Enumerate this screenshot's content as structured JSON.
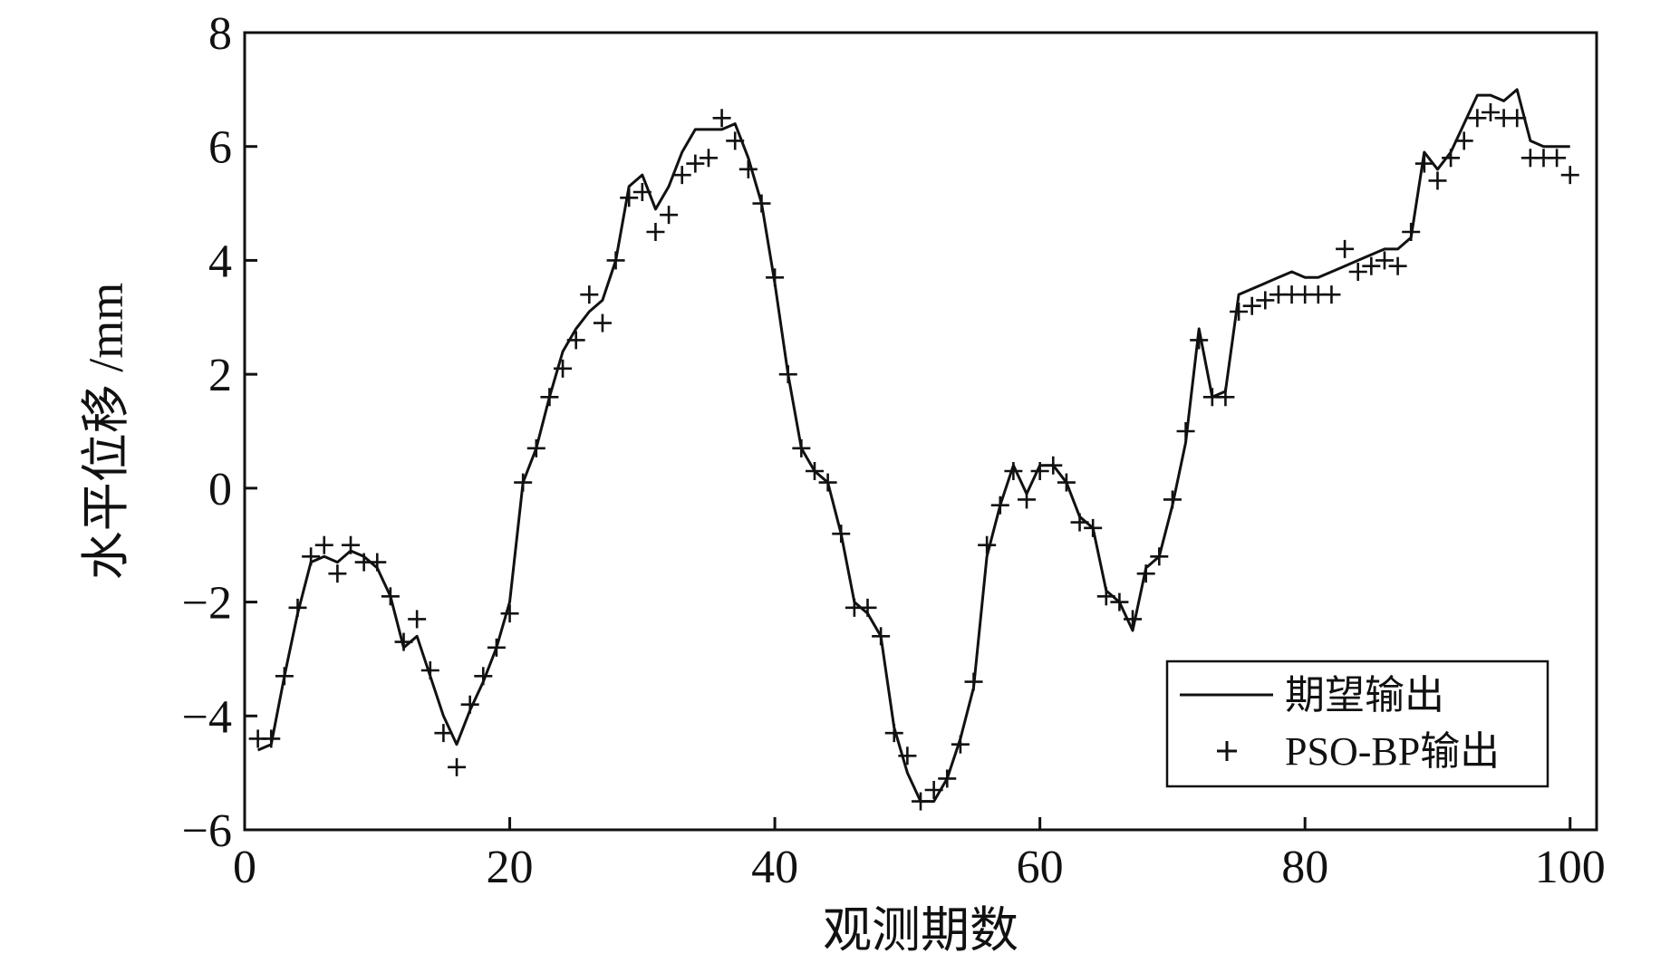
{
  "chart_data": {
    "type": "line",
    "xlabel": "观测期数",
    "ylabel": "水平位移 /mm",
    "xlim": [
      0,
      102
    ],
    "ylim": [
      -6,
      8
    ],
    "xticks": [
      0,
      20,
      40,
      60,
      80,
      100
    ],
    "yticks": [
      -6,
      -4,
      -2,
      0,
      2,
      4,
      6,
      8
    ],
    "xtick_labels": [
      "0",
      "20",
      "40",
      "60",
      "80",
      "100"
    ],
    "ytick_labels": [
      "−6",
      "−4",
      "−2",
      "0",
      "2",
      "4",
      "6",
      "8"
    ],
    "grid": false,
    "legend_position": "bottom-right",
    "series": [
      {
        "name": "期望输出",
        "style": "line",
        "color": "#111111",
        "x": [
          1,
          2,
          3,
          4,
          5,
          6,
          7,
          8,
          9,
          10,
          11,
          12,
          13,
          14,
          15,
          16,
          17,
          18,
          19,
          20,
          21,
          22,
          23,
          24,
          25,
          26,
          27,
          28,
          29,
          30,
          31,
          32,
          33,
          34,
          35,
          36,
          37,
          38,
          39,
          40,
          41,
          42,
          43,
          44,
          45,
          46,
          47,
          48,
          49,
          50,
          51,
          52,
          53,
          54,
          55,
          56,
          57,
          58,
          59,
          60,
          61,
          62,
          63,
          64,
          65,
          66,
          67,
          68,
          69,
          70,
          71,
          72,
          73,
          74,
          75,
          76,
          77,
          78,
          79,
          80,
          81,
          82,
          83,
          84,
          85,
          86,
          87,
          88,
          89,
          90,
          91,
          92,
          93,
          94,
          95,
          96,
          97,
          98,
          99,
          100
        ],
        "y": [
          -4.6,
          -4.5,
          -3.3,
          -2.2,
          -1.3,
          -1.2,
          -1.3,
          -1.1,
          -1.2,
          -1.4,
          -1.9,
          -2.8,
          -2.6,
          -3.3,
          -4.0,
          -4.5,
          -3.9,
          -3.4,
          -2.8,
          -2.0,
          0.1,
          0.7,
          1.6,
          2.4,
          2.8,
          3.1,
          3.3,
          4.0,
          5.3,
          5.5,
          4.9,
          5.3,
          5.9,
          6.3,
          6.3,
          6.3,
          6.4,
          5.8,
          5.0,
          3.6,
          2.0,
          0.7,
          0.3,
          0.1,
          -0.8,
          -2.0,
          -2.2,
          -2.6,
          -4.2,
          -5.0,
          -5.5,
          -5.5,
          -5.1,
          -4.4,
          -3.5,
          -1.2,
          -0.3,
          0.4,
          -0.1,
          0.4,
          0.4,
          0.1,
          -0.5,
          -0.7,
          -1.8,
          -2.0,
          -2.5,
          -1.4,
          -1.2,
          -0.3,
          0.8,
          2.8,
          1.6,
          1.7,
          3.4,
          3.5,
          3.6,
          3.7,
          3.8,
          3.7,
          3.7,
          3.8,
          3.9,
          4.0,
          4.1,
          4.2,
          4.2,
          4.4,
          5.9,
          5.6,
          5.9,
          6.4,
          6.9,
          6.9,
          6.8,
          7.0,
          6.1,
          6.0,
          6.0,
          6.0
        ]
      },
      {
        "name": "PSO-BP输出",
        "style": "marker",
        "marker": "+",
        "color": "#111111",
        "x": [
          1,
          2,
          3,
          4,
          5,
          6,
          7,
          8,
          9,
          10,
          11,
          12,
          13,
          14,
          15,
          16,
          17,
          18,
          19,
          20,
          21,
          22,
          23,
          24,
          25,
          26,
          27,
          28,
          29,
          30,
          31,
          32,
          33,
          34,
          35,
          36,
          37,
          38,
          39,
          40,
          41,
          42,
          43,
          44,
          45,
          46,
          47,
          48,
          49,
          50,
          51,
          52,
          53,
          54,
          55,
          56,
          57,
          58,
          59,
          60,
          61,
          62,
          63,
          64,
          65,
          66,
          67,
          68,
          69,
          70,
          71,
          72,
          73,
          74,
          75,
          76,
          77,
          78,
          79,
          80,
          81,
          82,
          83,
          84,
          85,
          86,
          87,
          88,
          89,
          90,
          91,
          92,
          93,
          94,
          95,
          96,
          97,
          98,
          99,
          100
        ],
        "y": [
          -4.4,
          -4.4,
          -3.3,
          -2.1,
          -1.2,
          -1.0,
          -1.5,
          -1.0,
          -1.3,
          -1.3,
          -1.9,
          -2.7,
          -2.3,
          -3.2,
          -4.3,
          -4.9,
          -3.8,
          -3.3,
          -2.8,
          -2.2,
          0.1,
          0.7,
          1.6,
          2.1,
          2.6,
          3.4,
          2.9,
          4.0,
          5.1,
          5.2,
          4.5,
          4.8,
          5.5,
          5.7,
          5.8,
          6.5,
          6.1,
          5.6,
          5.0,
          3.7,
          2.0,
          0.7,
          0.3,
          0.1,
          -0.8,
          -2.1,
          -2.1,
          -2.6,
          -4.3,
          -4.7,
          -5.5,
          -5.3,
          -5.1,
          -4.5,
          -3.4,
          -1.0,
          -0.3,
          0.3,
          -0.2,
          0.3,
          0.4,
          0.1,
          -0.6,
          -0.7,
          -1.9,
          -2.0,
          -2.3,
          -1.5,
          -1.2,
          -0.2,
          1.0,
          2.6,
          1.6,
          1.6,
          3.1,
          3.2,
          3.3,
          3.4,
          3.4,
          3.4,
          3.4,
          3.4,
          4.2,
          3.8,
          3.9,
          4.0,
          3.9,
          4.5,
          5.7,
          5.4,
          5.8,
          6.1,
          6.5,
          6.6,
          6.5,
          6.5,
          5.8,
          5.8,
          5.8,
          5.5
        ]
      }
    ]
  }
}
